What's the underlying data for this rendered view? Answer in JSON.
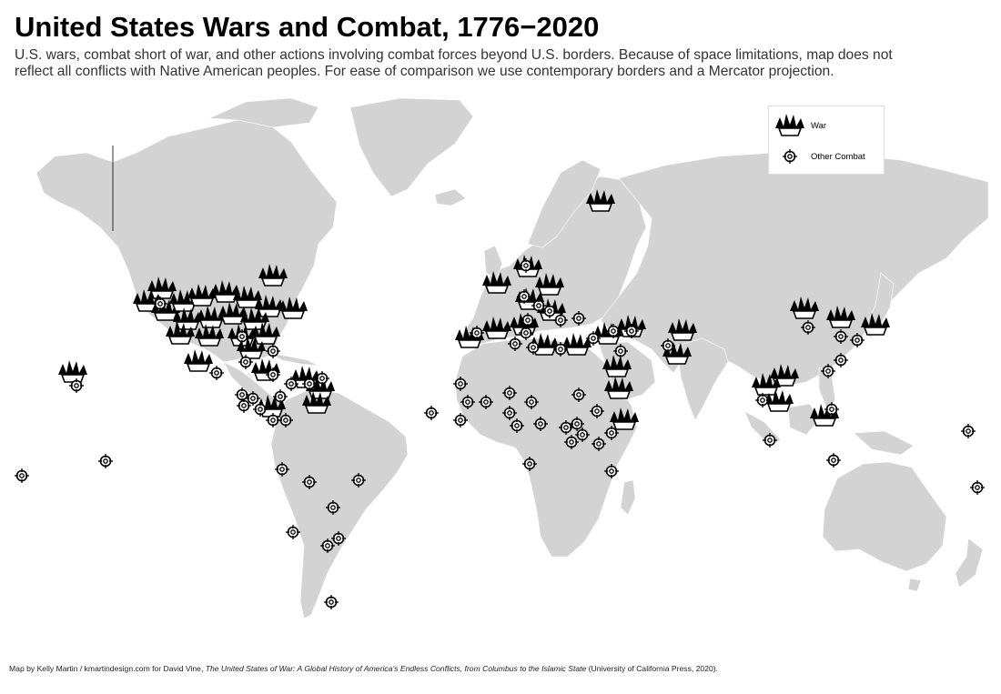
{
  "title": "United States Wars and Combat, 1776−2020",
  "subtitle_line1": "U.S. wars, combat short of war, and other actions involving combat forces beyond U.S. borders. Because of space limitations, map does not",
  "subtitle_line2": "reflect all conflicts with Native American peoples. For ease of comparison we use contemporary borders and a Mercator projection.",
  "legend": {
    "war_label": "War",
    "combat_label": "Other Combat",
    "war_icon": "explosion-icon",
    "combat_icon": "crosshair-icon"
  },
  "credit": {
    "prefix": "Map by Kelly Martin / kmartindesign.com for David Vine, ",
    "book_title": "The United States of War: A Global History of America’s Endless Conflicts, from Columbus to the Islamic State",
    "suffix": " (University of California Press, 2020)."
  },
  "colors": {
    "land": "#d3d3d3",
    "border": "#ffffff",
    "marker_stroke": "#000000",
    "marker_fill": "#ffffff",
    "background": "#ffffff"
  }
}
